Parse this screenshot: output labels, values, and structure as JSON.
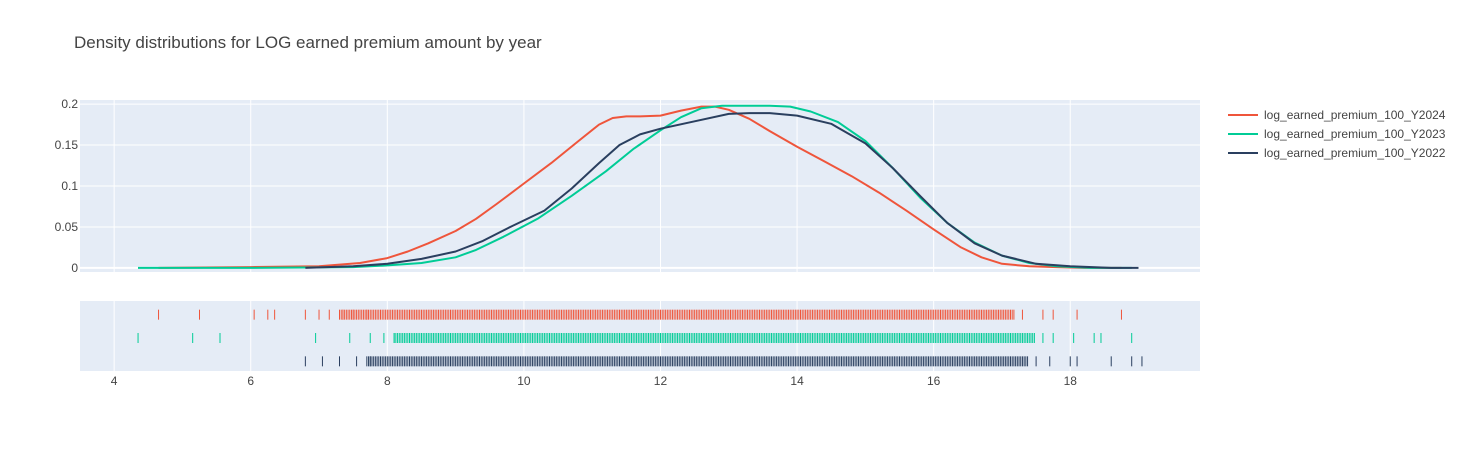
{
  "chart_data": {
    "type": "line",
    "title": "Density distributions for LOG earned premium amount by year",
    "xlabel": "",
    "ylabel": "",
    "xlim": [
      3.5,
      19.9
    ],
    "ylim": [
      -0.005,
      0.205
    ],
    "x_ticks": [
      4,
      6,
      8,
      10,
      12,
      14,
      16,
      18
    ],
    "x_tick_labels": [
      "4",
      "6",
      "8",
      "10",
      "12",
      "14",
      "16",
      "18"
    ],
    "y_ticks": [
      0,
      0.05,
      0.1,
      0.15,
      0.2
    ],
    "y_tick_labels": [
      "0",
      "0.05",
      "0.1",
      "0.15",
      "0.2"
    ],
    "grid": true,
    "legend_position": "top-right",
    "series": [
      {
        "name": "log_earned_premium_100_Y2024",
        "color": "#EF553B",
        "x": [
          4.65,
          6.0,
          7.0,
          7.6,
          8.0,
          8.3,
          8.6,
          9.0,
          9.3,
          9.6,
          10.0,
          10.4,
          10.8,
          11.1,
          11.3,
          11.5,
          11.7,
          12.0,
          12.3,
          12.6,
          12.8,
          13.0,
          13.3,
          13.6,
          14.0,
          14.4,
          14.8,
          15.2,
          15.6,
          16.0,
          16.4,
          16.7,
          17.0,
          17.4,
          17.8,
          18.2,
          18.75
        ],
        "y": [
          0.0,
          0.001,
          0.002,
          0.006,
          0.012,
          0.02,
          0.03,
          0.045,
          0.06,
          0.078,
          0.103,
          0.128,
          0.155,
          0.175,
          0.183,
          0.185,
          0.185,
          0.186,
          0.192,
          0.197,
          0.197,
          0.193,
          0.182,
          0.167,
          0.148,
          0.13,
          0.112,
          0.092,
          0.07,
          0.047,
          0.025,
          0.013,
          0.005,
          0.002,
          0.001,
          0.0,
          0.0
        ]
      },
      {
        "name": "log_earned_premium_100_Y2023",
        "color": "#00CC96",
        "x": [
          4.35,
          6.0,
          7.5,
          8.0,
          8.5,
          9.0,
          9.3,
          9.7,
          10.2,
          10.7,
          11.2,
          11.6,
          12.0,
          12.3,
          12.6,
          12.9,
          13.2,
          13.6,
          13.9,
          14.2,
          14.6,
          15.0,
          15.4,
          15.8,
          16.2,
          16.6,
          17.0,
          17.4,
          17.8,
          18.3,
          18.9
        ],
        "y": [
          0.0,
          0.0,
          0.001,
          0.003,
          0.006,
          0.013,
          0.022,
          0.038,
          0.06,
          0.088,
          0.118,
          0.145,
          0.168,
          0.184,
          0.195,
          0.198,
          0.198,
          0.198,
          0.197,
          0.191,
          0.178,
          0.155,
          0.122,
          0.086,
          0.055,
          0.031,
          0.015,
          0.006,
          0.002,
          0.0,
          0.0
        ]
      },
      {
        "name": "log_earned_premium_100_Y2022",
        "color": "#2A3F5F",
        "x": [
          6.8,
          7.5,
          8.0,
          8.5,
          9.0,
          9.4,
          9.8,
          10.3,
          10.7,
          11.1,
          11.4,
          11.7,
          12.0,
          12.5,
          13.0,
          13.3,
          13.6,
          14.0,
          14.5,
          15.0,
          15.4,
          15.8,
          16.2,
          16.6,
          17.0,
          17.5,
          18.0,
          18.6,
          19.0
        ],
        "y": [
          0.0,
          0.002,
          0.005,
          0.011,
          0.02,
          0.033,
          0.05,
          0.07,
          0.097,
          0.128,
          0.15,
          0.163,
          0.17,
          0.179,
          0.188,
          0.189,
          0.189,
          0.186,
          0.176,
          0.152,
          0.122,
          0.088,
          0.055,
          0.03,
          0.015,
          0.005,
          0.002,
          0.0,
          0.0
        ]
      }
    ],
    "rug": [
      {
        "name": "log_earned_premium_100_Y2024",
        "color": "#EF553B",
        "isolated": [
          4.65,
          5.25,
          6.05,
          6.25,
          6.35,
          6.8,
          7.0,
          7.15,
          7.35,
          7.5,
          7.7,
          17.3,
          17.6,
          17.75,
          18.1,
          18.75
        ],
        "dense_ranges": [
          [
            7.3,
            17.2
          ]
        ]
      },
      {
        "name": "log_earned_premium_100_Y2023",
        "color": "#00CC96",
        "isolated": [
          4.35,
          5.15,
          5.55,
          6.95,
          7.45,
          7.75,
          7.95,
          8.1,
          17.6,
          17.75,
          18.05,
          18.35,
          18.45,
          18.9
        ],
        "dense_ranges": [
          [
            8.1,
            17.5
          ]
        ]
      },
      {
        "name": "log_earned_premium_100_Y2022",
        "color": "#2A3F5F",
        "isolated": [
          6.8,
          7.05,
          7.3,
          7.55,
          7.75,
          17.5,
          17.7,
          18.0,
          18.1,
          18.6,
          18.9,
          19.05
        ],
        "dense_ranges": [
          [
            7.7,
            17.4
          ]
        ]
      }
    ]
  }
}
